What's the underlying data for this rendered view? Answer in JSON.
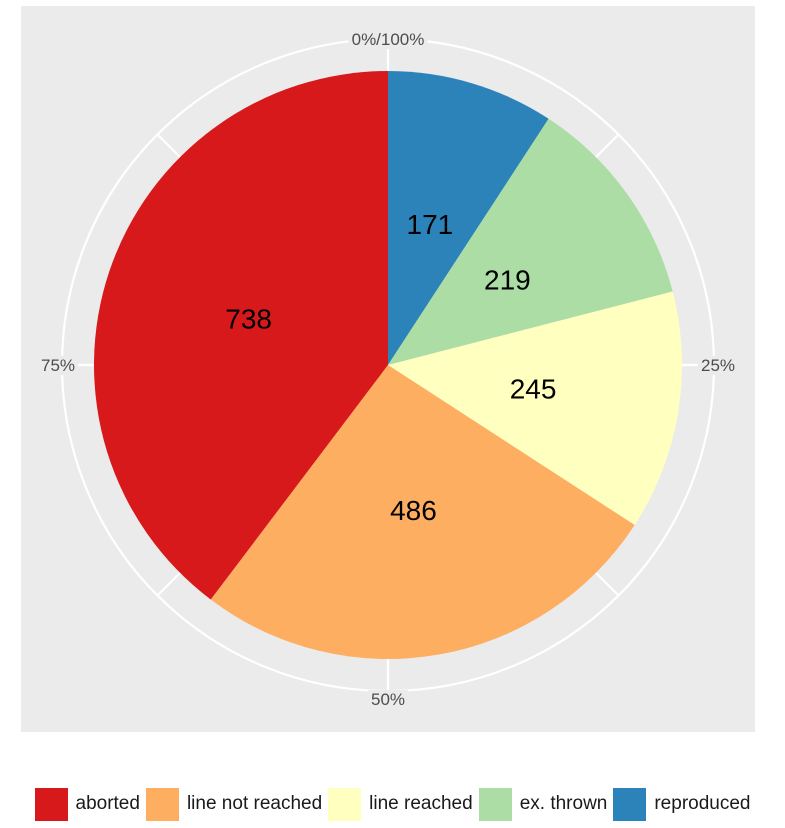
{
  "chart_data": {
    "type": "pie",
    "direction": "clockwise",
    "start": "top",
    "categories": [
      "reproduced",
      "ex. thrown",
      "line reached",
      "line not reached",
      "aborted"
    ],
    "values": [
      171,
      219,
      245,
      486,
      738
    ],
    "colors": [
      "#2b83ba",
      "#abdda4",
      "#ffffbf",
      "#fdae61",
      "#d7191c"
    ],
    "percent_ticks": [
      {
        "value": 0,
        "label": "0%/100%"
      },
      {
        "value": 0.25,
        "label": "25%"
      },
      {
        "value": 0.5,
        "label": "50%"
      },
      {
        "value": 0.75,
        "label": "75%"
      }
    ],
    "minor_tick_fractions": [
      0.125,
      0.375,
      0.625,
      0.875
    ],
    "legend": {
      "position": "bottom",
      "entries": [
        "aborted",
        "line not reached",
        "line reached",
        "ex. thrown",
        "reproduced"
      ]
    },
    "panel_background": "#ebebeb",
    "grid": true
  }
}
